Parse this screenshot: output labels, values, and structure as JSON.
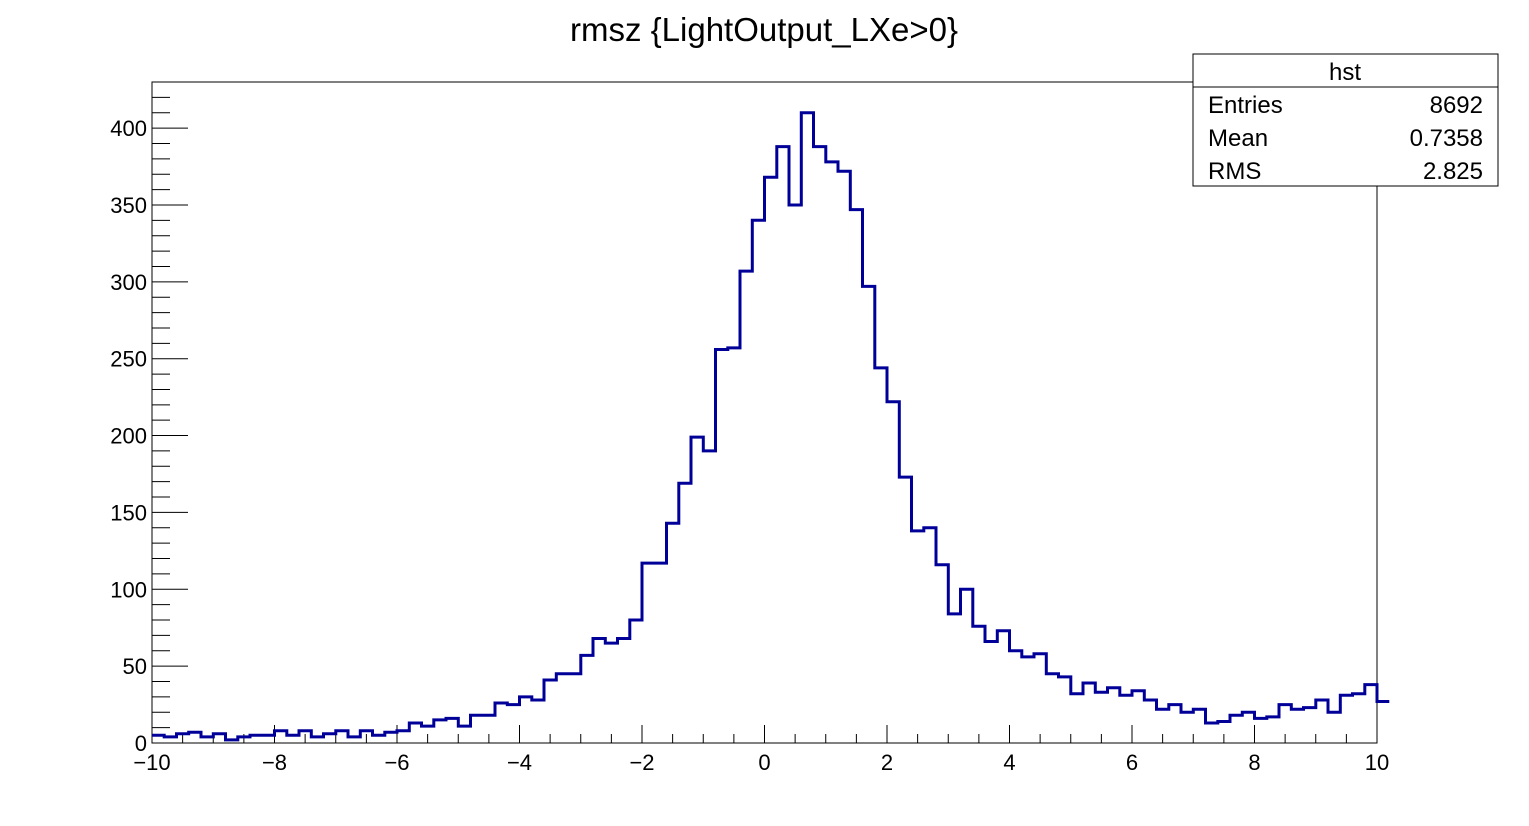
{
  "chart_data": {
    "type": "bar",
    "title": "rmsz {LightOutput_LXe>0}",
    "xlabel": "",
    "ylabel": "",
    "xlim": [
      -10,
      10
    ],
    "ylim": [
      0,
      430
    ],
    "line_color": "#000099",
    "grid": false,
    "x_ticks": [
      -10,
      -8,
      -6,
      -4,
      -2,
      0,
      2,
      4,
      6,
      8,
      10
    ],
    "x_tick_labels": [
      "−10",
      "−8",
      "−6",
      "−4",
      "−2",
      "0",
      "2",
      "4",
      "6",
      "8",
      "10"
    ],
    "y_ticks": [
      0,
      50,
      100,
      150,
      200,
      250,
      300,
      350,
      400
    ],
    "y_tick_labels": [
      "0",
      "50",
      "100",
      "150",
      "200",
      "250",
      "300",
      "350",
      "400"
    ],
    "bins": {
      "low": -10,
      "width": 0.2,
      "values": [
        5,
        4,
        6,
        7,
        4,
        6,
        2,
        4,
        5,
        5,
        8,
        5,
        8,
        4,
        6,
        8,
        4,
        8,
        5,
        7,
        8,
        13,
        11,
        15,
        16,
        11,
        18,
        18,
        26,
        25,
        30,
        28,
        41,
        45,
        45,
        57,
        68,
        65,
        68,
        80,
        117,
        117,
        143,
        169,
        199,
        190,
        256,
        257,
        307,
        340,
        368,
        388,
        350,
        410,
        388,
        378,
        372,
        347,
        297,
        244,
        222,
        173,
        138,
        140,
        116,
        84,
        100,
        76,
        66,
        73,
        60,
        56,
        58,
        45,
        43,
        32,
        39,
        33,
        36,
        31,
        34,
        28,
        22,
        25,
        20,
        22,
        13,
        14,
        18,
        20,
        16,
        17,
        25,
        22,
        23,
        28,
        20,
        31,
        32,
        38,
        27
      ]
    }
  },
  "stats_box": {
    "name": "hst",
    "rows": [
      {
        "label": "Entries",
        "value": "8692"
      },
      {
        "label": "Mean",
        "value": "0.7358"
      },
      {
        "label": "RMS",
        "value": "2.825"
      }
    ]
  }
}
